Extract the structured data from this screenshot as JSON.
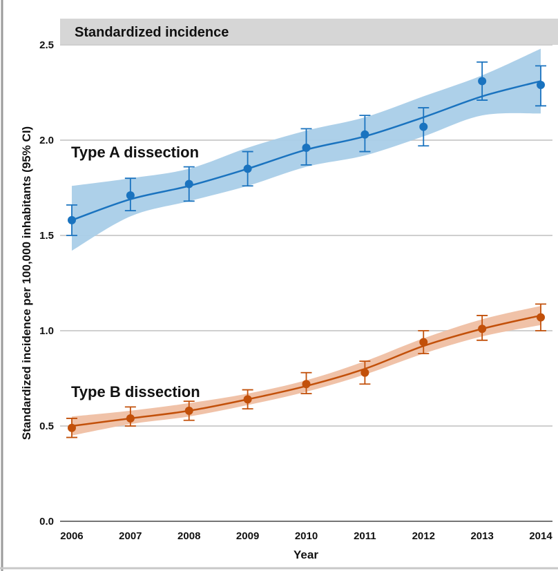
{
  "chart_data": {
    "type": "line",
    "title": "Standardized incidence",
    "xlabel": "Year",
    "ylabel": "Standardized incidence per 100,000 inhabitants (95% CI)",
    "x": [
      2006,
      2007,
      2008,
      2009,
      2010,
      2011,
      2012,
      2013,
      2014
    ],
    "xlim": [
      2005.8,
      2014.2
    ],
    "ylim": [
      0.0,
      2.5
    ],
    "yticks": [
      0.0,
      0.5,
      1.0,
      1.5,
      2.0,
      2.5
    ],
    "ytick_labels": [
      "0.0",
      "0.5",
      "1.0",
      "1.5",
      "2.0",
      "2.5"
    ],
    "grid": "horizontal",
    "series": [
      {
        "name": "Type A dissection",
        "color": "#1a73bf",
        "band_color": "#a9cde8",
        "points": [
          1.58,
          1.71,
          1.77,
          1.85,
          1.96,
          2.03,
          2.07,
          2.31,
          2.29
        ],
        "ci_low": [
          1.5,
          1.63,
          1.68,
          1.76,
          1.87,
          1.94,
          1.97,
          2.21,
          2.18
        ],
        "ci_high": [
          1.66,
          1.8,
          1.86,
          1.94,
          2.06,
          2.13,
          2.17,
          2.41,
          2.39
        ],
        "fit": [
          1.58,
          1.69,
          1.76,
          1.85,
          1.95,
          2.02,
          2.12,
          2.23,
          2.31
        ],
        "band_low": [
          1.42,
          1.6,
          1.68,
          1.76,
          1.86,
          1.92,
          2.02,
          2.13,
          2.14
        ],
        "band_high": [
          1.76,
          1.8,
          1.85,
          1.96,
          2.05,
          2.12,
          2.23,
          2.34,
          2.48
        ]
      },
      {
        "name": "Type B dissection",
        "color": "#c2500a",
        "band_color": "#efbfa3",
        "points": [
          0.49,
          0.54,
          0.58,
          0.64,
          0.72,
          0.78,
          0.94,
          1.01,
          1.07
        ],
        "ci_low": [
          0.44,
          0.5,
          0.53,
          0.59,
          0.67,
          0.72,
          0.88,
          0.95,
          1.0
        ],
        "ci_high": [
          0.54,
          0.6,
          0.63,
          0.69,
          0.78,
          0.84,
          1.0,
          1.08,
          1.14
        ],
        "fit": [
          0.5,
          0.54,
          0.58,
          0.64,
          0.71,
          0.8,
          0.92,
          1.01,
          1.08
        ],
        "band_low": [
          0.45,
          0.51,
          0.55,
          0.61,
          0.68,
          0.77,
          0.88,
          0.97,
          1.03
        ],
        "band_high": [
          0.55,
          0.58,
          0.62,
          0.67,
          0.74,
          0.84,
          0.96,
          1.06,
          1.13
        ]
      }
    ]
  }
}
